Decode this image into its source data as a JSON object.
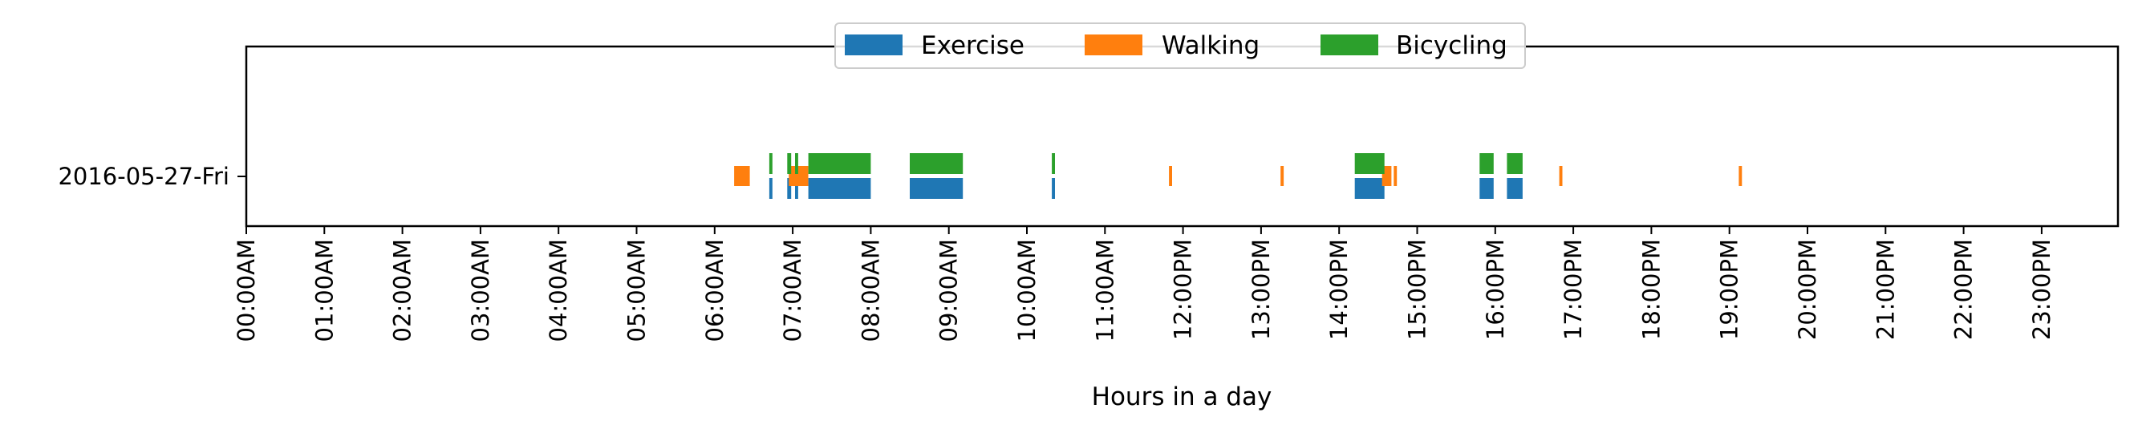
{
  "chart_data": {
    "type": "timeline",
    "xlabel": "Hours in a day",
    "ylabel": "",
    "xlim": [
      0,
      24
    ],
    "xticks": [
      {
        "value": 0,
        "label": "00:00AM"
      },
      {
        "value": 1,
        "label": "01:00AM"
      },
      {
        "value": 2,
        "label": "02:00AM"
      },
      {
        "value": 3,
        "label": "03:00AM"
      },
      {
        "value": 4,
        "label": "04:00AM"
      },
      {
        "value": 5,
        "label": "05:00AM"
      },
      {
        "value": 6,
        "label": "06:00AM"
      },
      {
        "value": 7,
        "label": "07:00AM"
      },
      {
        "value": 8,
        "label": "08:00AM"
      },
      {
        "value": 9,
        "label": "09:00AM"
      },
      {
        "value": 10,
        "label": "10:00AM"
      },
      {
        "value": 11,
        "label": "11:00AM"
      },
      {
        "value": 12,
        "label": "12:00PM"
      },
      {
        "value": 13,
        "label": "13:00PM"
      },
      {
        "value": 14,
        "label": "14:00PM"
      },
      {
        "value": 15,
        "label": "15:00PM"
      },
      {
        "value": 16,
        "label": "16:00PM"
      },
      {
        "value": 17,
        "label": "17:00PM"
      },
      {
        "value": 18,
        "label": "18:00PM"
      },
      {
        "value": 19,
        "label": "19:00PM"
      },
      {
        "value": 20,
        "label": "20:00PM"
      },
      {
        "value": 21,
        "label": "21:00PM"
      },
      {
        "value": 22,
        "label": "22:00PM"
      },
      {
        "value": 23,
        "label": "23:00PM"
      }
    ],
    "categories": [
      "2016-05-27-Fri"
    ],
    "legend": {
      "position": "upper center",
      "entries": [
        "Exercise",
        "Walking",
        "Bicycling"
      ]
    },
    "grid": false,
    "series": [
      {
        "name": "Exercise",
        "color": "#1f77b4",
        "row": "lower",
        "intervals": [
          [
            6.7,
            6.74
          ],
          [
            6.93,
            6.98
          ],
          [
            7.03,
            7.07
          ],
          [
            7.2,
            7.24
          ],
          [
            7.24,
            8.0
          ],
          [
            8.5,
            9.18
          ],
          [
            10.32,
            10.36
          ],
          [
            14.2,
            14.58
          ],
          [
            15.8,
            15.98
          ],
          [
            16.15,
            16.35
          ]
        ]
      },
      {
        "name": "Walking",
        "color": "#ff7f0e",
        "row": "middle",
        "intervals": [
          [
            6.25,
            6.45
          ],
          [
            6.95,
            7.2
          ],
          [
            11.82,
            11.86
          ],
          [
            13.25,
            13.29
          ],
          [
            14.55,
            14.67
          ],
          [
            14.7,
            14.74
          ],
          [
            16.82,
            16.86
          ],
          [
            19.12,
            19.16
          ]
        ]
      },
      {
        "name": "Bicycling",
        "color": "#2ca02c",
        "row": "upper",
        "intervals": [
          [
            6.7,
            6.74
          ],
          [
            6.93,
            6.98
          ],
          [
            7.03,
            7.07
          ],
          [
            7.2,
            7.24
          ],
          [
            7.24,
            8.0
          ],
          [
            8.5,
            9.18
          ],
          [
            10.32,
            10.36
          ],
          [
            14.2,
            14.58
          ],
          [
            15.8,
            15.98
          ],
          [
            16.15,
            16.35
          ]
        ]
      }
    ]
  }
}
